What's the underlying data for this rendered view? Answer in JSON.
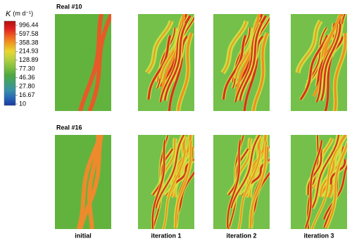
{
  "colorbar": {
    "symbol": "K",
    "unit": "(m d⁻¹)",
    "ticks": [
      "996.44",
      "597.58",
      "358.38",
      "214.93",
      "128.89",
      "77.30",
      "46.36",
      "27.80",
      "16.67",
      "10"
    ]
  },
  "rows": [
    {
      "title": "Real #10"
    },
    {
      "title": "Real #16"
    }
  ],
  "columns": [
    "initial",
    "iteration 1",
    "iteration 2",
    "iteration 3"
  ]
}
